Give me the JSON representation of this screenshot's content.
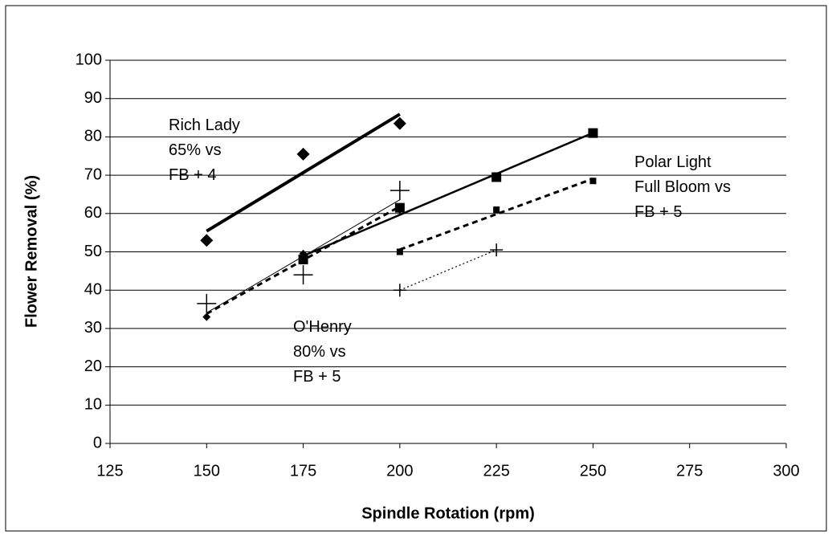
{
  "chart_data": {
    "type": "scatter",
    "x_label": "Spindle Rotation (rpm)",
    "y_label": "Flower Removal (%)",
    "xlim": [
      125,
      300
    ],
    "xticks": [
      125,
      150,
      175,
      200,
      225,
      250,
      275,
      300
    ],
    "ylim": [
      0,
      100
    ],
    "yticks": [
      0,
      10,
      20,
      30,
      40,
      50,
      60,
      70,
      80,
      90,
      100
    ],
    "grid": true,
    "series": [
      {
        "color": "#000000",
        "marker": "diamond",
        "marker_size": 8,
        "trendline": "solid",
        "trend_width": 4,
        "x": [
          150,
          175,
          200
        ],
        "values": [
          53,
          75.5,
          83.5
        ]
      },
      {
        "color": "#000000",
        "marker": "cross",
        "marker_size": 12,
        "trendline": "solid",
        "trend_width": 1,
        "x": [
          150,
          175,
          200
        ],
        "values": [
          36.5,
          44,
          66
        ]
      },
      {
        "color": "#000000",
        "marker": "diamond",
        "marker_size": 5,
        "trendline": "dashed",
        "trend_width": 3,
        "x": [
          150,
          175,
          200
        ],
        "values": [
          33,
          49.5,
          61
        ]
      },
      {
        "color": "#000000",
        "marker": "square",
        "marker_size": 6,
        "trendline": "solid",
        "trend_width": 2.5,
        "x": [
          175,
          200,
          225,
          250
        ],
        "values": [
          48,
          61.5,
          69.5,
          81
        ]
      },
      {
        "color": "#000000",
        "marker": "square",
        "marker_size": 4,
        "trendline": "dashed",
        "trend_width": 3,
        "x": [
          200,
          225,
          250
        ],
        "values": [
          50,
          61,
          68.5
        ]
      },
      {
        "color": "#000000",
        "marker": "cross",
        "marker_size": 8,
        "trendline": "dotted",
        "trend_width": 1.2,
        "x": [
          200,
          225
        ],
        "values": [
          40,
          50.5
        ]
      }
    ],
    "annotations": [
      [
        "Rich Lady",
        "65% vs",
        "FB + 4"
      ],
      [
        "O'Henry",
        "80% vs",
        "FB + 5"
      ],
      [
        "Polar Light",
        "Full Bloom vs",
        "FB + 5"
      ]
    ]
  }
}
